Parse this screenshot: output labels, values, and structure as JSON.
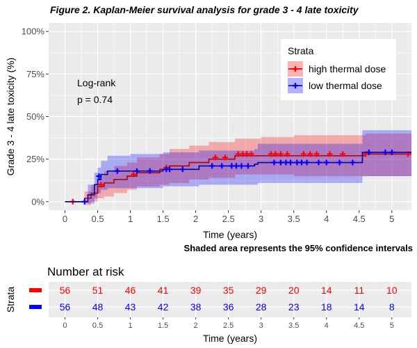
{
  "figure_title": "Figure 2. Kaplan-Meier survival analysis for grade 3 - 4 late toxicity",
  "caption": "Shaded area represents the 95% confidence intervals",
  "annotation": {
    "test": "Log-rank",
    "pvalue": "p = 0.74"
  },
  "legend": {
    "title": "Strata",
    "items": [
      "high thermal dose",
      "low thermal dose"
    ]
  },
  "colors": {
    "high": "#ff0000",
    "high_line": "#b40000",
    "low": "#0000ff",
    "low_line": "#0000aa",
    "panel": "#ebebeb"
  },
  "risk_table": {
    "title": "Number at risk",
    "ylabel": "Strata",
    "xlabel": "Time (years)",
    "times": [
      0,
      0.5,
      1,
      1.5,
      2,
      2.5,
      3,
      3.5,
      4,
      4.5,
      5
    ],
    "rows": [
      {
        "name": "high thermal dose",
        "values": [
          56,
          51,
          46,
          41,
          39,
          35,
          29,
          20,
          14,
          11,
          10
        ]
      },
      {
        "name": "low thermal dose",
        "values": [
          56,
          48,
          43,
          42,
          38,
          36,
          28,
          23,
          18,
          14,
          8
        ]
      }
    ]
  },
  "chart_data": {
    "type": "line",
    "title": "Figure 2. Kaplan-Meier survival analysis for grade 3 - 4 late toxicity",
    "xlabel": "Time (years)",
    "ylabel": "Grade 3 - 4 late toxicity (%)",
    "xlim": [
      -0.25,
      5.3
    ],
    "ylim": [
      -0.05,
      1.05
    ],
    "xticks": [
      0,
      0.5,
      1,
      1.5,
      2,
      2.5,
      3,
      3.5,
      4,
      4.5,
      5
    ],
    "yticks": [
      0,
      0.25,
      0.5,
      0.75,
      1
    ],
    "ytick_labels": [
      "0%",
      "25%",
      "50%",
      "75%",
      "100%"
    ],
    "grid": true,
    "legend_position": "top-right",
    "series": [
      {
        "name": "high thermal dose",
        "step": [
          [
            0,
            0
          ],
          [
            0.2,
            0
          ],
          [
            0.3,
            0.02
          ],
          [
            0.4,
            0.05
          ],
          [
            0.5,
            0.09
          ],
          [
            0.6,
            0.11
          ],
          [
            0.75,
            0.13
          ],
          [
            0.95,
            0.15
          ],
          [
            1.1,
            0.17
          ],
          [
            1.45,
            0.19
          ],
          [
            1.6,
            0.21
          ],
          [
            1.9,
            0.23
          ],
          [
            2.2,
            0.25
          ],
          [
            2.6,
            0.27
          ],
          [
            4.6,
            0.28
          ],
          [
            5.3,
            0.28
          ]
        ],
        "ci_upper": [
          [
            0,
            0
          ],
          [
            0.2,
            0
          ],
          [
            0.3,
            0.06
          ],
          [
            0.4,
            0.1
          ],
          [
            0.5,
            0.15
          ],
          [
            0.6,
            0.18
          ],
          [
            0.75,
            0.21
          ],
          [
            0.95,
            0.23
          ],
          [
            1.1,
            0.26
          ],
          [
            1.45,
            0.28
          ],
          [
            1.6,
            0.31
          ],
          [
            1.9,
            0.33
          ],
          [
            2.2,
            0.35
          ],
          [
            2.6,
            0.37
          ],
          [
            3.0,
            0.38
          ],
          [
            3.5,
            0.39
          ],
          [
            4.6,
            0.4
          ],
          [
            5.3,
            0.4
          ]
        ],
        "ci_lower": [
          [
            0,
            0
          ],
          [
            0.2,
            0
          ],
          [
            0.3,
            -0.02
          ],
          [
            0.4,
            0.0
          ],
          [
            0.5,
            0.02
          ],
          [
            0.6,
            0.03
          ],
          [
            0.75,
            0.05
          ],
          [
            0.95,
            0.07
          ],
          [
            1.1,
            0.09
          ],
          [
            1.45,
            0.1
          ],
          [
            1.6,
            0.11
          ],
          [
            1.9,
            0.13
          ],
          [
            2.2,
            0.14
          ],
          [
            2.6,
            0.16
          ],
          [
            3.0,
            0.16
          ],
          [
            3.5,
            0.15
          ],
          [
            4.6,
            0.15
          ],
          [
            5.3,
            0.15
          ]
        ],
        "censored": [
          [
            0.12,
            0
          ],
          [
            0.55,
            0.1
          ],
          [
            1.05,
            0.16
          ],
          [
            1.55,
            0.2
          ],
          [
            2.3,
            0.26
          ],
          [
            2.45,
            0.26
          ],
          [
            2.65,
            0.28
          ],
          [
            2.72,
            0.28
          ],
          [
            2.78,
            0.28
          ],
          [
            2.85,
            0.28
          ],
          [
            3.15,
            0.28
          ],
          [
            3.22,
            0.28
          ],
          [
            3.3,
            0.28
          ],
          [
            3.4,
            0.28
          ],
          [
            3.65,
            0.28
          ],
          [
            3.75,
            0.28
          ],
          [
            3.85,
            0.28
          ],
          [
            4.05,
            0.28
          ],
          [
            4.25,
            0.28
          ],
          [
            4.6,
            0.28
          ],
          [
            5.25,
            0.28
          ]
        ]
      },
      {
        "name": "low thermal dose",
        "step": [
          [
            0,
            0
          ],
          [
            0.25,
            0
          ],
          [
            0.35,
            0.04
          ],
          [
            0.45,
            0.1
          ],
          [
            0.5,
            0.13
          ],
          [
            0.55,
            0.16
          ],
          [
            0.65,
            0.18
          ],
          [
            1.5,
            0.19
          ],
          [
            2.05,
            0.21
          ],
          [
            2.9,
            0.22
          ],
          [
            2.95,
            0.23
          ],
          [
            4.55,
            0.29
          ],
          [
            5.3,
            0.29
          ]
        ],
        "ci_upper": [
          [
            0,
            0
          ],
          [
            0.25,
            0
          ],
          [
            0.35,
            0.1
          ],
          [
            0.45,
            0.17
          ],
          [
            0.5,
            0.2
          ],
          [
            0.55,
            0.24
          ],
          [
            0.65,
            0.27
          ],
          [
            1.0,
            0.28
          ],
          [
            1.5,
            0.29
          ],
          [
            2.05,
            0.3
          ],
          [
            2.9,
            0.31
          ],
          [
            2.95,
            0.34
          ],
          [
            4.55,
            0.42
          ],
          [
            5.3,
            0.42
          ]
        ],
        "ci_lower": [
          [
            0,
            0
          ],
          [
            0.25,
            0
          ],
          [
            0.35,
            -0.01
          ],
          [
            0.45,
            0.02
          ],
          [
            0.5,
            0.05
          ],
          [
            0.55,
            0.07
          ],
          [
            0.65,
            0.08
          ],
          [
            1.5,
            0.09
          ],
          [
            2.05,
            0.1
          ],
          [
            2.9,
            0.1
          ],
          [
            2.95,
            0.11
          ],
          [
            4.55,
            0.15
          ],
          [
            5.3,
            0.15
          ]
        ],
        "censored": [
          [
            0.3,
            0
          ],
          [
            0.52,
            0.15
          ],
          [
            0.8,
            0.18
          ],
          [
            1.1,
            0.18
          ],
          [
            1.3,
            0.18
          ],
          [
            1.55,
            0.19
          ],
          [
            1.6,
            0.19
          ],
          [
            1.8,
            0.19
          ],
          [
            2.25,
            0.21
          ],
          [
            2.4,
            0.21
          ],
          [
            2.55,
            0.21
          ],
          [
            2.62,
            0.21
          ],
          [
            2.7,
            0.21
          ],
          [
            2.8,
            0.21
          ],
          [
            3.2,
            0.23
          ],
          [
            3.3,
            0.23
          ],
          [
            3.38,
            0.23
          ],
          [
            3.45,
            0.23
          ],
          [
            3.55,
            0.23
          ],
          [
            3.62,
            0.23
          ],
          [
            3.7,
            0.23
          ],
          [
            3.88,
            0.23
          ],
          [
            4.0,
            0.23
          ],
          [
            4.2,
            0.23
          ],
          [
            4.4,
            0.23
          ],
          [
            4.65,
            0.29
          ],
          [
            4.9,
            0.29
          ],
          [
            5.0,
            0.29
          ]
        ]
      }
    ]
  }
}
